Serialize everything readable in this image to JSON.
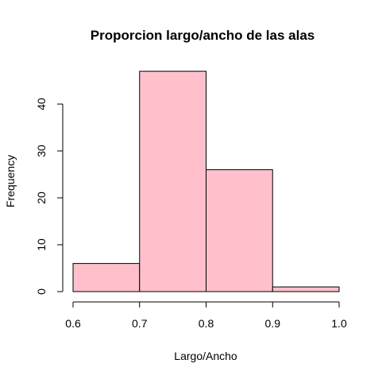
{
  "chart_data": {
    "type": "bar",
    "title": "Proporcion largo/ancho de las alas",
    "xlabel": "Largo/Ancho",
    "ylabel": "Frequency",
    "bins": [
      {
        "start": 0.6,
        "end": 0.7,
        "count": 6
      },
      {
        "start": 0.7,
        "end": 0.8,
        "count": 47
      },
      {
        "start": 0.8,
        "end": 0.9,
        "count": 26
      },
      {
        "start": 0.9,
        "end": 1.0,
        "count": 1
      }
    ],
    "xlim": [
      0.6,
      1.0
    ],
    "ylim": [
      0,
      47
    ],
    "x_ticks": [
      "0.6",
      "0.7",
      "0.8",
      "0.9",
      "1.0"
    ],
    "y_ticks": [
      "0",
      "10",
      "20",
      "30",
      "40"
    ],
    "bar_color": "#ffc0cb",
    "grid": false,
    "legend": "none"
  }
}
